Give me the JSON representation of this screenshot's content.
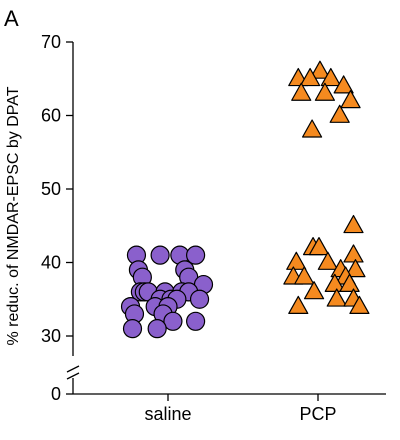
{
  "panel_label": "A",
  "chart_data": {
    "type": "scatter",
    "ylabel": "% reduc. of NMDAR-EPSC by DPAT",
    "xlabel": "",
    "categories": [
      "saline",
      "PCP"
    ],
    "ylim": [
      0,
      70
    ],
    "y_axis_break": [
      0,
      30
    ],
    "y_ticks": [
      0,
      30,
      40,
      50,
      60,
      70
    ],
    "grid": false,
    "legend": "none",
    "series": [
      {
        "category": "saline",
        "marker": "circle",
        "color": "#8a60cc",
        "points": [
          {
            "x": 0.28,
            "y": 41
          },
          {
            "x": 0.52,
            "y": 41
          },
          {
            "x": 0.72,
            "y": 41
          },
          {
            "x": 0.88,
            "y": 41
          },
          {
            "x": 0.3,
            "y": 39
          },
          {
            "x": 0.77,
            "y": 39
          },
          {
            "x": 0.34,
            "y": 38
          },
          {
            "x": 0.81,
            "y": 38
          },
          {
            "x": 0.96,
            "y": 37
          },
          {
            "x": 0.32,
            "y": 36
          },
          {
            "x": 0.36,
            "y": 36
          },
          {
            "x": 0.4,
            "y": 36
          },
          {
            "x": 0.57,
            "y": 36
          },
          {
            "x": 0.74,
            "y": 36
          },
          {
            "x": 0.81,
            "y": 36
          },
          {
            "x": 0.52,
            "y": 35
          },
          {
            "x": 0.63,
            "y": 35
          },
          {
            "x": 0.69,
            "y": 35
          },
          {
            "x": 0.92,
            "y": 35
          },
          {
            "x": 0.22,
            "y": 34
          },
          {
            "x": 0.47,
            "y": 34
          },
          {
            "x": 0.6,
            "y": 34
          },
          {
            "x": 0.26,
            "y": 33
          },
          {
            "x": 0.55,
            "y": 33
          },
          {
            "x": 0.65,
            "y": 32
          },
          {
            "x": 0.88,
            "y": 32
          },
          {
            "x": 0.24,
            "y": 31
          },
          {
            "x": 0.49,
            "y": 31
          }
        ]
      },
      {
        "category": "PCP",
        "marker": "triangle",
        "color": "#f58a1f",
        "points": [
          {
            "x": 0.62,
            "y": 66
          },
          {
            "x": 0.4,
            "y": 65
          },
          {
            "x": 0.52,
            "y": 65
          },
          {
            "x": 0.73,
            "y": 65
          },
          {
            "x": 0.86,
            "y": 64
          },
          {
            "x": 0.43,
            "y": 63
          },
          {
            "x": 0.67,
            "y": 63
          },
          {
            "x": 0.93,
            "y": 62
          },
          {
            "x": 0.82,
            "y": 60
          },
          {
            "x": 0.54,
            "y": 58
          },
          {
            "x": 0.96,
            "y": 45
          },
          {
            "x": 0.55,
            "y": 42
          },
          {
            "x": 0.61,
            "y": 42
          },
          {
            "x": 0.96,
            "y": 41
          },
          {
            "x": 0.7,
            "y": 40
          },
          {
            "x": 0.38,
            "y": 40
          },
          {
            "x": 0.83,
            "y": 39
          },
          {
            "x": 0.98,
            "y": 39
          },
          {
            "x": 0.35,
            "y": 38
          },
          {
            "x": 0.46,
            "y": 38
          },
          {
            "x": 0.88,
            "y": 38
          },
          {
            "x": 0.77,
            "y": 37
          },
          {
            "x": 0.92,
            "y": 37
          },
          {
            "x": 0.56,
            "y": 36
          },
          {
            "x": 0.79,
            "y": 35
          },
          {
            "x": 0.96,
            "y": 35
          },
          {
            "x": 0.4,
            "y": 34
          },
          {
            "x": 1.02,
            "y": 34
          }
        ]
      }
    ]
  }
}
